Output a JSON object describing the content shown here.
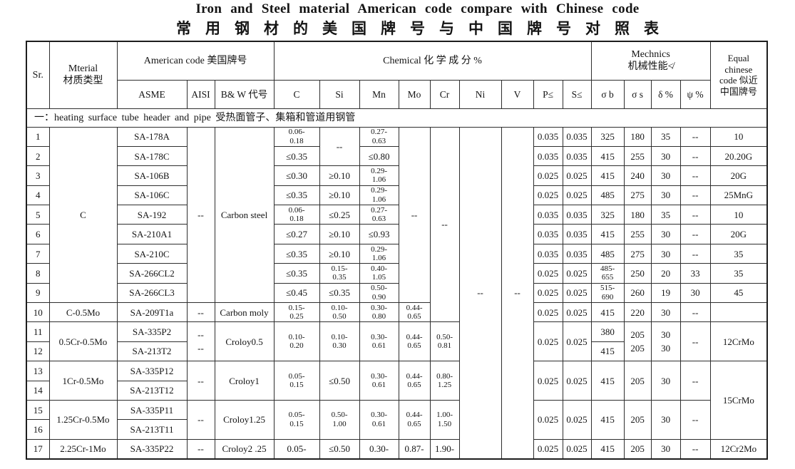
{
  "titles": {
    "english": "Iron and Steel material American code compare with Chinese code",
    "chinese": "常用钢材的美国牌号与中国牌号对照表"
  },
  "table": {
    "header": {
      "sr": "Sr.",
      "material": "Mterial\n材质类型",
      "american": "American code 美国牌号",
      "chemical": "Chemical  化 学 成 分   %",
      "mechanics": "Mechnics\n机械性能≮",
      "equal": "Equal\nchinese\ncode 似近\n中国牌号",
      "sub": [
        "ASME",
        "AISI",
        "B& W 代号",
        "C",
        "Si",
        "Mn",
        "Mo",
        "Cr",
        "Ni",
        "V",
        "P≤",
        "S≤",
        "σ b",
        "σ s",
        "δ %",
        "ψ %"
      ]
    },
    "section": "一：heating surface tube header and pipe   受热面管子、集箱和管道用钢管",
    "body": [
      [
        "1",
        {
          "t": "C",
          "rs": 9
        },
        "SA-178A",
        {
          "t": "--",
          "rs": 9
        },
        {
          "t": "Carbon steel",
          "rs": 9
        },
        "0.06-\n0.18",
        {
          "t": "--",
          "rs": 2
        },
        "0.27-\n0.63",
        {
          "t": "--",
          "rs": 9
        },
        {
          "t": "--",
          "rs": 10
        },
        {
          "t": "--",
          "rs": 17
        },
        {
          "t": "--",
          "rs": 17
        },
        "0.035",
        "0.035",
        "325",
        "180",
        "35",
        "--",
        "10"
      ],
      [
        "2",
        "SA-178C",
        "≤0.35",
        "≤0.80",
        "0.035",
        "0.035",
        "415",
        "255",
        "30",
        "--",
        "20.20G"
      ],
      [
        "3",
        "SA-106B",
        "≤0.30",
        "≥0.10",
        "0.29-\n1.06",
        "0.025",
        "0.025",
        "415",
        "240",
        "30",
        "--",
        "20G"
      ],
      [
        "4",
        "SA-106C",
        "≤0.35",
        "≥0.10",
        "0.29-\n1.06",
        "0.025",
        "0.025",
        "485",
        "275",
        "30",
        "--",
        "25MnG"
      ],
      [
        "5",
        "SA-192",
        "0.06-\n0.18",
        "≤0.25",
        "0.27-\n0.63",
        "0.035",
        "0.035",
        "325",
        "180",
        "35",
        "--",
        "10"
      ],
      [
        "6",
        "SA-210A1",
        "≤0.27",
        "≥0.10",
        "≤0.93",
        "0.035",
        "0.035",
        "415",
        "255",
        "30",
        "--",
        "20G"
      ],
      [
        "7",
        "SA-210C",
        "≤0.35",
        "≥0.10",
        "0.29-\n1.06",
        "0.035",
        "0.035",
        "485",
        "275",
        "30",
        "--",
        "35"
      ],
      [
        "8",
        "SA-266CL2",
        "≤0.35",
        "0.15-\n0.35",
        "0.40-\n1.05",
        "0.025",
        "0.025",
        "485-\n655",
        "250",
        "20",
        "33",
        "35"
      ],
      [
        "9",
        "SA-266CL3",
        "≤0.45",
        "≤0.35",
        "0.50-\n0.90",
        "0.025",
        "0.025",
        "515-\n690",
        "260",
        "19",
        "30",
        "45"
      ],
      [
        "10",
        "C-0.5Mo",
        "SA-209T1a",
        "--",
        "Carbon moly",
        "0.15-\n0.25",
        "0.10-\n0.50",
        "0.30-\n0.80",
        "0.44-\n0.65",
        "0.025",
        "0.025",
        "415",
        "220",
        "30",
        "--",
        ""
      ],
      [
        "11",
        {
          "t": "0.5Cr-0.5Mo",
          "rs": 2
        },
        "SA-335P2",
        {
          "t": "--\n--",
          "rs": 2,
          "cls": "two"
        },
        {
          "t": "Croloy0.5",
          "rs": 2
        },
        {
          "t": "0.10-\n0.20",
          "rs": 2
        },
        {
          "t": "0.10-\n0.30",
          "rs": 2
        },
        {
          "t": "0.30-\n0.61",
          "rs": 2
        },
        {
          "t": "0.44-\n0.65",
          "rs": 2
        },
        {
          "t": "0.50-\n0.81",
          "rs": 2
        },
        {
          "t": "0.025",
          "rs": 2
        },
        {
          "t": "0.025",
          "rs": 2
        },
        "380",
        {
          "t": "205\n205",
          "rs": 2,
          "cls": "two"
        },
        {
          "t": "30\n30",
          "rs": 2,
          "cls": "two"
        },
        {
          "t": "--",
          "rs": 2
        },
        {
          "t": "12CrMo",
          "rs": 2
        }
      ],
      [
        "12",
        "SA-213T2",
        "415"
      ],
      [
        "13",
        {
          "t": "1Cr-0.5Mo",
          "rs": 2
        },
        "SA-335P12",
        {
          "t": "--",
          "rs": 2
        },
        {
          "t": "Croloy1",
          "rs": 2
        },
        {
          "t": "0.05-\n0.15",
          "rs": 2
        },
        {
          "t": "≤0.50",
          "rs": 2
        },
        {
          "t": "0.30-\n0.61",
          "rs": 2
        },
        {
          "t": "0.44-\n0.65",
          "rs": 2
        },
        {
          "t": "0.80-\n1.25",
          "rs": 2
        },
        {
          "t": "0.025",
          "rs": 2
        },
        {
          "t": "0.025",
          "rs": 2
        },
        {
          "t": "415",
          "rs": 2
        },
        {
          "t": "205",
          "rs": 2
        },
        {
          "t": "30",
          "rs": 2
        },
        {
          "t": "--",
          "rs": 2
        },
        {
          "t": "15CrMo",
          "rs": 4
        }
      ],
      [
        "14",
        "SA-213T12"
      ],
      [
        "15",
        {
          "t": "1.25Cr-0.5Mo",
          "rs": 2
        },
        "SA-335P11",
        {
          "t": "--",
          "rs": 2
        },
        {
          "t": "Croloy1.25",
          "rs": 2
        },
        {
          "t": "0.05-\n0.15",
          "rs": 2
        },
        {
          "t": "0.50-\n1.00",
          "rs": 2
        },
        {
          "t": "0.30-\n0.61",
          "rs": 2
        },
        {
          "t": "0.44-\n0.65",
          "rs": 2
        },
        {
          "t": "1.00-\n1.50",
          "rs": 2
        },
        {
          "t": "0.025",
          "rs": 2
        },
        {
          "t": "0.025",
          "rs": 2
        },
        {
          "t": "415",
          "rs": 2
        },
        {
          "t": "205",
          "rs": 2
        },
        {
          "t": "30",
          "rs": 2
        },
        {
          "t": "--",
          "rs": 2
        }
      ],
      [
        "16",
        "SA-213T11"
      ],
      [
        "17",
        "2.25Cr-1Mo",
        "SA-335P22",
        "--",
        "Croloy2 .25",
        "0.05-",
        "≤0.50",
        "0.30-",
        "0.87-",
        "1.90-",
        "0.025",
        "0.025",
        "415",
        "205",
        "30",
        "--",
        "12Cr2Mo"
      ]
    ]
  }
}
